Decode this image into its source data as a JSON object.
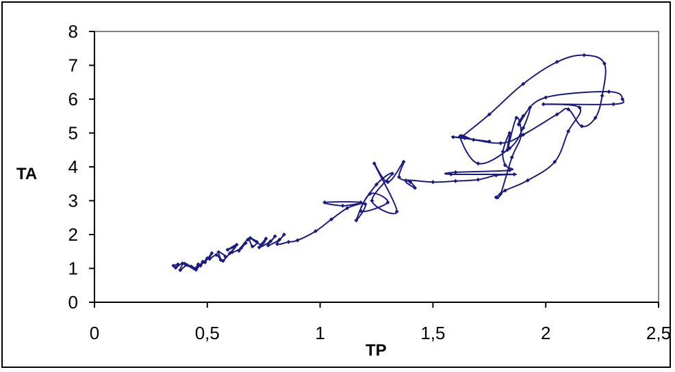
{
  "chart_data": {
    "type": "scatter",
    "mode": "lines+markers",
    "title": "",
    "xlabel": "TP",
    "ylabel": "TA",
    "xlim": [
      0,
      2.5
    ],
    "ylim": [
      0,
      8
    ],
    "x_ticks": [
      "0",
      "0,5",
      "1",
      "1,5",
      "2",
      "2,5"
    ],
    "y_ticks": [
      "0",
      "1",
      "2",
      "3",
      "4",
      "5",
      "6",
      "7",
      "8"
    ],
    "grid": false,
    "legend": "none",
    "series_color": "#1a1a80",
    "plot_area_border": "#808080",
    "series": [
      {
        "points": [
          [
            0.35,
            1.08
          ],
          [
            0.37,
            1.12
          ],
          [
            0.36,
            1.02
          ],
          [
            0.39,
            1.15
          ],
          [
            0.38,
            0.95
          ],
          [
            0.41,
            1.1
          ],
          [
            0.43,
            1.05
          ],
          [
            0.4,
            1.14
          ],
          [
            0.44,
            1.0
          ],
          [
            0.46,
            1.12
          ],
          [
            0.45,
            0.96
          ],
          [
            0.48,
            1.2
          ],
          [
            0.47,
            1.08
          ],
          [
            0.5,
            1.3
          ],
          [
            0.49,
            1.18
          ],
          [
            0.52,
            1.45
          ],
          [
            0.51,
            1.28
          ],
          [
            0.54,
            1.4
          ],
          [
            0.56,
            1.25
          ],
          [
            0.55,
            1.48
          ],
          [
            0.58,
            1.35
          ],
          [
            0.57,
            1.22
          ],
          [
            0.6,
            1.45
          ],
          [
            0.62,
            1.62
          ],
          [
            0.59,
            1.55
          ],
          [
            0.63,
            1.7
          ],
          [
            0.61,
            1.48
          ],
          [
            0.65,
            1.6
          ],
          [
            0.67,
            1.75
          ],
          [
            0.64,
            1.52
          ],
          [
            0.68,
            1.85
          ],
          [
            0.7,
            1.65
          ],
          [
            0.72,
            1.78
          ],
          [
            0.69,
            1.9
          ],
          [
            0.74,
            1.7
          ],
          [
            0.76,
            1.88
          ],
          [
            0.73,
            1.62
          ],
          [
            0.78,
            1.8
          ],
          [
            0.8,
            1.95
          ],
          [
            0.77,
            1.68
          ],
          [
            0.82,
            1.85
          ],
          [
            0.84,
            2.0
          ],
          [
            0.81,
            1.72
          ],
          [
            0.86,
            1.78
          ],
          [
            0.9,
            1.83
          ],
          [
            0.98,
            2.1
          ],
          [
            1.05,
            2.45
          ],
          [
            1.12,
            2.78
          ],
          [
            1.18,
            2.95
          ],
          [
            1.02,
            2.95
          ],
          [
            1.1,
            2.85
          ],
          [
            1.2,
            2.9
          ],
          [
            1.16,
            2.42
          ],
          [
            1.22,
            3.2
          ],
          [
            1.3,
            2.95
          ],
          [
            1.18,
            2.7
          ],
          [
            1.25,
            3.48
          ],
          [
            1.32,
            3.8
          ],
          [
            1.23,
            3.0
          ],
          [
            1.34,
            2.68
          ],
          [
            1.24,
            4.1
          ],
          [
            1.3,
            3.55
          ],
          [
            1.37,
            4.15
          ],
          [
            1.35,
            3.7
          ],
          [
            1.4,
            3.55
          ],
          [
            1.42,
            3.38
          ],
          [
            1.38,
            3.6
          ],
          [
            1.5,
            3.55
          ],
          [
            1.6,
            3.58
          ],
          [
            1.7,
            3.62
          ],
          [
            1.78,
            3.75
          ],
          [
            1.86,
            3.78
          ],
          [
            1.58,
            3.78
          ],
          [
            1.6,
            3.84
          ],
          [
            1.84,
            3.9
          ],
          [
            1.82,
            4.05
          ],
          [
            1.81,
            4.45
          ],
          [
            1.84,
            5.0
          ],
          [
            1.83,
            4.5
          ],
          [
            1.87,
            5.45
          ],
          [
            1.89,
            4.92
          ],
          [
            1.85,
            4.28
          ],
          [
            1.8,
            3.2
          ],
          [
            1.78,
            3.1
          ],
          [
            1.82,
            3.3
          ],
          [
            1.92,
            3.6
          ],
          [
            2.04,
            4.15
          ],
          [
            2.1,
            5.05
          ],
          [
            2.15,
            5.75
          ],
          [
            1.99,
            5.85
          ],
          [
            2.3,
            5.85
          ],
          [
            2.34,
            6.0
          ],
          [
            2.28,
            6.22
          ],
          [
            2.0,
            6.05
          ],
          [
            1.9,
            5.5
          ],
          [
            1.88,
            5.25
          ],
          [
            1.93,
            5.75
          ],
          [
            1.9,
            5.15
          ],
          [
            1.84,
            4.55
          ],
          [
            1.7,
            4.1
          ],
          [
            1.62,
            4.9
          ],
          [
            1.68,
            4.8
          ],
          [
            1.75,
            4.75
          ],
          [
            1.59,
            4.88
          ],
          [
            1.64,
            4.85
          ],
          [
            1.8,
            4.7
          ],
          [
            1.9,
            4.95
          ],
          [
            2.05,
            5.55
          ],
          [
            2.1,
            5.7
          ],
          [
            2.16,
            5.2
          ],
          [
            2.22,
            5.45
          ],
          [
            2.25,
            6.1
          ],
          [
            2.26,
            7.05
          ],
          [
            2.17,
            7.3
          ],
          [
            2.05,
            7.1
          ],
          [
            1.9,
            6.45
          ],
          [
            1.75,
            5.55
          ],
          [
            1.63,
            4.9
          ]
        ]
      }
    ]
  }
}
